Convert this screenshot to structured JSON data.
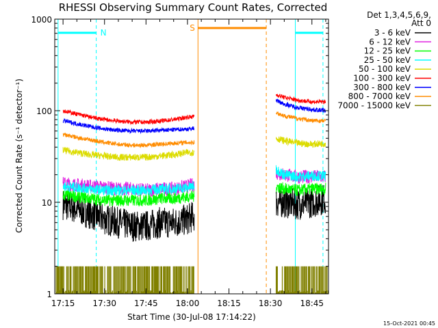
{
  "chart_data": {
    "type": "line",
    "title": "RHESSI Observing Summary Count Rates, Corrected",
    "xlabel": "Start Time (30-Jul-08 17:14:22)",
    "ylabel": "Corrected Count Rate (s⁻¹ detector⁻¹)",
    "yscale": "log",
    "ylim": [
      1,
      1000
    ],
    "xlim_minutes": [
      17.2,
      18.85
    ],
    "x_ticks": [
      "17:15",
      "17:30",
      "17:45",
      "18:00",
      "18:15",
      "18:30",
      "18:45"
    ],
    "y_ticks": [
      "1",
      "10",
      "100",
      "1000"
    ],
    "legend_title": [
      "Det 1,3,4,5,6,9,",
      "Att 0"
    ],
    "legend_position": "right",
    "series": [
      {
        "name": "3 - 6 keV",
        "color": "#000000",
        "x": [
          "17:15",
          "17:20",
          "17:25",
          "17:30",
          "17:35",
          "17:40",
          "17:45",
          "17:50",
          "17:55",
          "18:00",
          "18:02",
          "18:32",
          "18:35",
          "18:40",
          "18:45",
          "18:50"
        ],
        "y": [
          9.5,
          8.5,
          7.5,
          6.5,
          6,
          5.5,
          5.5,
          6,
          6,
          6.5,
          7,
          10,
          10,
          9.5,
          10,
          11
        ]
      },
      {
        "name": "6 - 12 keV",
        "color": "#e020e0",
        "x": [
          "17:15",
          "17:20",
          "17:25",
          "17:30",
          "17:35",
          "17:40",
          "17:45",
          "17:50",
          "17:55",
          "18:00",
          "18:02",
          "18:32",
          "18:35",
          "18:40",
          "18:45",
          "18:50"
        ],
        "y": [
          16,
          15.5,
          15,
          14.5,
          14,
          14,
          13.5,
          14,
          14,
          15,
          15.5,
          21,
          20,
          19,
          19,
          19
        ]
      },
      {
        "name": "12 - 25 keV",
        "color": "#00ff00",
        "x": [
          "17:15",
          "17:20",
          "17:25",
          "17:30",
          "17:35",
          "17:40",
          "17:45",
          "17:50",
          "17:55",
          "18:00",
          "18:02",
          "18:32",
          "18:35",
          "18:40",
          "18:45",
          "18:50"
        ],
        "y": [
          12,
          11.5,
          11,
          10.5,
          10.5,
          10.5,
          10.5,
          11,
          11,
          11.5,
          11.5,
          15,
          14,
          13.5,
          14,
          14
        ]
      },
      {
        "name": "25 - 50 keV",
        "color": "#00ffff",
        "x": [
          "17:15",
          "17:20",
          "17:25",
          "17:30",
          "17:35",
          "17:40",
          "17:45",
          "17:50",
          "17:55",
          "18:00",
          "18:02",
          "18:32",
          "18:35",
          "18:40",
          "18:45",
          "18:50"
        ],
        "y": [
          15,
          14.5,
          14,
          13.5,
          13.5,
          13.5,
          13.5,
          14,
          14,
          14.5,
          15,
          23,
          20,
          19,
          19.5,
          19.5
        ]
      },
      {
        "name": "50 - 100 keV",
        "color": "#dcdc00",
        "x": [
          "17:15",
          "17:20",
          "17:25",
          "17:30",
          "17:35",
          "17:40",
          "17:45",
          "17:50",
          "17:55",
          "18:00",
          "18:02",
          "18:32",
          "18:35",
          "18:40",
          "18:45",
          "18:50"
        ],
        "y": [
          37,
          35,
          33,
          32,
          31,
          31,
          31,
          32,
          33,
          35,
          35,
          50,
          47,
          44,
          43,
          44
        ]
      },
      {
        "name": "100 - 300 keV",
        "color": "#ff0000",
        "x": [
          "17:15",
          "17:20",
          "17:25",
          "17:30",
          "17:35",
          "17:40",
          "17:45",
          "17:50",
          "17:55",
          "18:00",
          "18:02",
          "18:32",
          "18:35",
          "18:40",
          "18:45",
          "18:50"
        ],
        "y": [
          100,
          92,
          85,
          80,
          77,
          75,
          75,
          77,
          80,
          85,
          86,
          150,
          140,
          130,
          125,
          125
        ]
      },
      {
        "name": "300 - 800 keV",
        "color": "#0000ff",
        "x": [
          "17:15",
          "17:20",
          "17:25",
          "17:30",
          "17:35",
          "17:40",
          "17:45",
          "17:50",
          "17:55",
          "18:00",
          "18:02",
          "18:32",
          "18:35",
          "18:40",
          "18:45",
          "18:50"
        ],
        "y": [
          78,
          72,
          67,
          63,
          61,
          60,
          60,
          61,
          62,
          63,
          64,
          130,
          118,
          108,
          103,
          100
        ]
      },
      {
        "name": "800 - 7000 keV",
        "color": "#ff8c00",
        "x": [
          "17:15",
          "17:20",
          "17:25",
          "17:30",
          "17:35",
          "17:40",
          "17:45",
          "17:50",
          "17:55",
          "18:00",
          "18:02",
          "18:32",
          "18:35",
          "18:40",
          "18:45",
          "18:50"
        ],
        "y": [
          55,
          51,
          48,
          45,
          43,
          42,
          42,
          43,
          44,
          45,
          45,
          95,
          88,
          82,
          78,
          77
        ]
      },
      {
        "name": "7000 - 15000 keV",
        "color": "#808000",
        "x": [
          "17:15",
          "17:20",
          "17:25",
          "17:30",
          "17:35",
          "17:40",
          "17:45",
          "17:50",
          "17:55",
          "18:00",
          "18:02",
          "18:32",
          "18:35",
          "18:40",
          "18:45",
          "18:50"
        ],
        "y": [
          1.5,
          1.5,
          1.5,
          1.5,
          1.5,
          1.5,
          1.5,
          1.5,
          1.5,
          1.5,
          1.5,
          1.5,
          1.5,
          1.5,
          1.5,
          1.5
        ]
      }
    ],
    "annotations": [
      {
        "label": "N",
        "color": "#00ffff"
      },
      {
        "label": "S",
        "color": "#ff8c00"
      }
    ]
  },
  "footer": {
    "timestamp": "15-Oct-2021 00:45"
  }
}
